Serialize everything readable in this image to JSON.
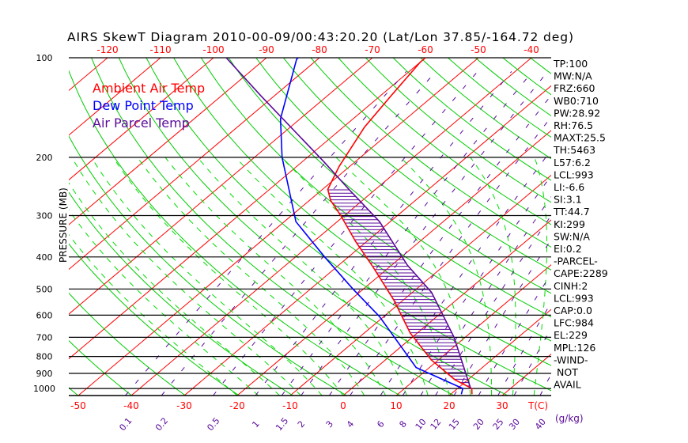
{
  "chart_data": {
    "type": "line",
    "title": "AIRS SkewT Diagram 2010-00-09/00:43:20.20 (Lat/Lon 37.85/-164.72 deg)",
    "ylabel": "PRESSURE (MB)",
    "xlabel": "T(C)",
    "mixing_ratio_unit": "(g/kg)",
    "pressure_ticks": [
      100,
      200,
      300,
      400,
      500,
      600,
      700,
      800,
      900,
      1000
    ],
    "ylim": [
      1050,
      100
    ],
    "bottom_temp_ticks": [
      -50,
      -40,
      -30,
      -20,
      -10,
      0,
      10,
      20,
      30
    ],
    "top_temp_ticks": [
      -120,
      -110,
      -100,
      -90,
      -80,
      -70,
      -60,
      -50,
      -40
    ],
    "mixing_ratio_labels": [
      "0.1",
      "0.2",
      "0.5",
      "1",
      "1.5",
      "2",
      "3",
      "4",
      "6",
      "8",
      "10",
      "12",
      "15",
      "20",
      "25",
      "30",
      "40"
    ],
    "legend": [
      "Ambient Air Temp",
      "Dew Point Temp",
      "Air Parcel Temp"
    ],
    "series": [
      {
        "name": "Ambient Air Temp",
        "color": "#ff0000",
        "p": [
          1040,
          1000,
          940,
          820,
          680,
          540,
          430,
          360,
          300,
          270,
          250,
          213,
          162,
          130,
          103,
          100
        ],
        "t": [
          24,
          22.7,
          17.5,
          8.7,
          -1.3,
          -11.8,
          -23,
          -32,
          -40.7,
          -46,
          -49,
          -52,
          -56,
          -58,
          -60,
          -60
        ]
      },
      {
        "name": "Dew Point Temp",
        "color": "#0000ff",
        "p": [
          1040,
          1000,
          864,
          606,
          500,
          400,
          313,
          200,
          153,
          101,
          100
        ],
        "t": [
          22,
          21,
          7.5,
          -10.8,
          -22,
          -34.5,
          -47.8,
          -64.8,
          -73.7,
          -84,
          -84
        ]
      },
      {
        "name": "Air Parcel Temp",
        "color": "#5a0a9a",
        "p": [
          1000,
          700,
          512,
          424,
          313,
          250,
          206,
          130,
          100
        ],
        "t": [
          22.5,
          7.9,
          -6.4,
          -17,
          -32,
          -45,
          -56,
          -82.7,
          -97.6
        ]
      }
    ],
    "stats": [
      "TP:100",
      "MW:N/A",
      "FRZ:660",
      "WB0:710",
      "PW:28.92",
      "RH:76.5",
      "MAXT:25.5",
      "TH:5463",
      "L57:6.2",
      "LCL:993",
      "LI:-6.6",
      "SI:3.1",
      "TT:44.7",
      "KI:299",
      "SW:N/A",
      "EI:0.2",
      "-PARCEL-",
      "CAPE:2289",
      "CINH:2",
      "LCL:993",
      "CAP:0.0",
      "LFC:984",
      "EL:229",
      "MPL:126",
      "-WIND-",
      "NOT",
      "AVAIL"
    ],
    "colors": {
      "isotherm": "#ff0000",
      "dry_adiabat": "#00cc00",
      "moist_adiabat": "#00dd00",
      "mixing_ratio": "#5a0a9a",
      "isobar": "#000000"
    }
  }
}
